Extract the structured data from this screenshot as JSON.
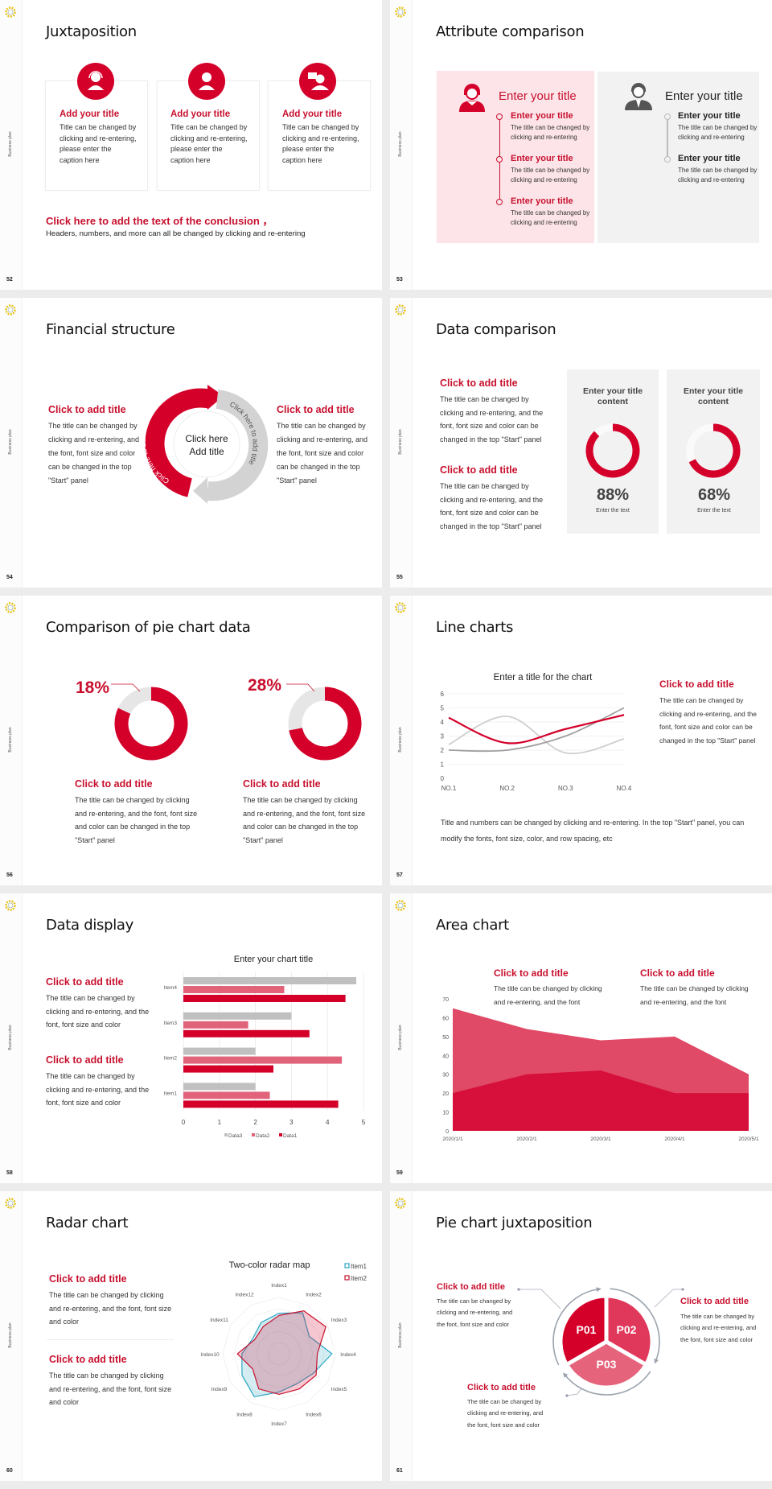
{
  "colors": {
    "accent": "#d4002a",
    "accent2": "#e0385a",
    "accent3": "#e5647c",
    "pink_panel": "#fce4e8",
    "gray_panel": "#f2f2f2",
    "gray_line": "#c8c8c8",
    "dark_gray": "#a0a0a0",
    "blue": "#2aa6c2",
    "background": "#ececec"
  },
  "sidebar": {
    "label": "Business plan",
    "logo_icon": "gear-logo-icon"
  },
  "slides": [
    {
      "number": "52",
      "title": "Juxtaposition",
      "cards": [
        {
          "icon": "headset-person-icon",
          "title": "Add your title",
          "body": "Title can be changed by clicking and re-entering, please enter the caption here"
        },
        {
          "icon": "person-icon",
          "title": "Add your title",
          "body": "Title can be changed by clicking and re-entering, please enter the caption here"
        },
        {
          "icon": "presenter-icon",
          "title": "Add your title",
          "body": "Title can be changed by clicking and re-entering, please enter the caption here"
        }
      ],
      "conclusion": "Click here to add the text of the conclusion ，",
      "subtext": "Headers, numbers, and more can all be changed by clicking and re-entering"
    },
    {
      "number": "53",
      "title": "Attribute comparison",
      "left": {
        "icon": "woman-icon",
        "heading": "Enter your title",
        "items": [
          {
            "title": "Enter your title",
            "body": "The title can be changed by clicking and re-entering"
          },
          {
            "title": "Enter your title",
            "body": "The title can be changed by clicking and re-entering"
          },
          {
            "title": "Enter your title",
            "body": "The title can be changed by clicking and re-entering"
          }
        ]
      },
      "right": {
        "icon": "businessman-icon",
        "heading": "Enter your title",
        "items": [
          {
            "title": "Enter your title",
            "body": "The title can be changed by clicking and re-entering"
          },
          {
            "title": "Enter your title",
            "body": "The title can be changed by clicking and re-entering"
          }
        ]
      }
    },
    {
      "number": "54",
      "title": "Financial structure",
      "blocks": [
        {
          "title": "Click to add title",
          "body": "The title can be changed by clicking and re-entering, and the font, font size and color can be changed in the top \"Start\" panel"
        },
        {
          "title": "Click to add title",
          "body": "The title can be changed by clicking and re-entering, and the font, font size and color can be changed in the top \"Start\" panel"
        }
      ],
      "center_line1": "Click here",
      "center_line2": "Add title",
      "arrow_red_text": "Click here to add title",
      "arrow_gray_text": "Click here to add title"
    },
    {
      "number": "55",
      "title": "Data comparison",
      "blocks": [
        {
          "title": "Click to add title",
          "body": "The title can be changed by clicking and re-entering, and the font, font size and color can be changed in the top \"Start\" panel"
        },
        {
          "title": "Click to add title",
          "body": "The title can be changed by clicking and re-entering, and the font, font size and color can be changed in the top \"Start\" panel"
        }
      ],
      "panels": [
        {
          "title": "Enter your title content",
          "percent": 88,
          "label": "88%",
          "caption": "Enter the text"
        },
        {
          "title": "Enter your title content",
          "percent": 68,
          "label": "68%",
          "caption": "Enter the text"
        }
      ]
    },
    {
      "number": "56",
      "title": "Comparison of pie chart data",
      "donuts": [
        {
          "percent": 18,
          "label": "18%",
          "title": "Click to add title",
          "body": "The title can be changed by clicking and re-entering, and the font, font size and color can be changed in the top \"Start\" panel"
        },
        {
          "percent": 28,
          "label": "28%",
          "title": "Click to add title",
          "body": "The title can be changed by clicking and re-entering, and the font, font size and color can be changed in the top \"Start\" panel"
        }
      ]
    },
    {
      "number": "57",
      "title": "Line charts",
      "block": {
        "title": "Click to add title",
        "body": "The title can be changed by clicking and re-entering, and the font, font size and color can be changed in the top \"Start\" panel"
      },
      "paragraph": "Title and numbers can be changed by clicking and re-entering. In the top \"Start\" panel, you can modify the fonts, font size, color, and row spacing, etc"
    },
    {
      "number": "58",
      "title": "Data display",
      "blocks": [
        {
          "title": "Click to add title",
          "body": "The title can be changed by clicking and re-entering, and the font, font size and color"
        },
        {
          "title": "Click to add title",
          "body": "The title can be changed by clicking and re-entering, and the font, font size and color"
        }
      ]
    },
    {
      "number": "59",
      "title": "Area chart",
      "blocks": [
        {
          "title": "Click to add title",
          "body": "The title can be changed by clicking and re-entering, and the font"
        },
        {
          "title": "Click to add title",
          "body": "The title can be changed by clicking and re-entering, and the font"
        }
      ]
    },
    {
      "number": "60",
      "title": "Radar chart",
      "blocks": [
        {
          "title": "Click to add title",
          "body": "The title can be changed by clicking and re-entering, and the font, font size and color"
        },
        {
          "title": "Click to add title",
          "body": "The title can be changed by clicking and re-entering, and the font, font size and color"
        }
      ]
    },
    {
      "number": "61",
      "title": "Pie chart juxtaposition",
      "blocks": [
        {
          "title": "Click to add title",
          "body": "The title can be changed by clicking and re-entering, and the font, font size and color"
        },
        {
          "title": "Click to add title",
          "body": "The title can be changed by clicking and re-entering, and the font, font size and color"
        },
        {
          "title": "Click to add title",
          "body": "The title can be changed by clicking and re-entering, and the font, font size and color"
        }
      ],
      "segments": [
        "P01",
        "P02",
        "P03"
      ]
    }
  ],
  "chart_data": [
    {
      "type": "line",
      "slide": "57",
      "title": "Enter a title for the chart",
      "categories": [
        "NO.1",
        "NO.2",
        "NO.3",
        "NO.4"
      ],
      "ylim": [
        0,
        6
      ],
      "yticks": [
        0,
        1,
        2,
        3,
        4,
        5,
        6
      ],
      "grid": true,
      "smooth": true,
      "series": [
        {
          "values": [
            2.4,
            4.4,
            1.8,
            2.8
          ],
          "color": "#cfcfcf"
        },
        {
          "values": [
            2,
            2,
            3,
            5
          ],
          "color": "#a0a0a0"
        },
        {
          "values": [
            4.3,
            2.5,
            3.5,
            4.5
          ],
          "color": "#d4002a"
        }
      ]
    },
    {
      "type": "bar",
      "orientation": "horizontal",
      "slide": "58",
      "title": "Enter your chart title",
      "categories": [
        "Item1",
        "Item2",
        "Item3",
        "Item4"
      ],
      "xlim": [
        0,
        5
      ],
      "xticks": [
        0,
        1,
        2,
        3,
        4,
        5
      ],
      "grid": true,
      "legend": "bottom",
      "series": [
        {
          "name": "Data3",
          "values": [
            2,
            2,
            3,
            4.8
          ],
          "color": "#c0c0c0"
        },
        {
          "name": "Data2",
          "values": [
            2.4,
            4.4,
            1.8,
            2.8
          ],
          "color": "#e0637a"
        },
        {
          "name": "Data1",
          "values": [
            4.3,
            2.5,
            3.5,
            4.5
          ],
          "color": "#d4002a"
        }
      ]
    },
    {
      "type": "area",
      "slide": "59",
      "stacked": false,
      "categories": [
        "2020/1/1",
        "2020/2/1",
        "2020/3/1",
        "2020/4/1",
        "2020/5/1"
      ],
      "ylim": [
        0,
        70
      ],
      "yticks": [
        0,
        10,
        20,
        30,
        40,
        50,
        60,
        70
      ],
      "series": [
        {
          "values": [
            65,
            54,
            48,
            50,
            30
          ],
          "color": "#e04a66"
        },
        {
          "values": [
            20,
            30,
            32,
            20,
            20
          ],
          "color": "#d6103a"
        }
      ]
    },
    {
      "type": "radar",
      "slide": "60",
      "title": "Two-color radar map",
      "legend": "top-right",
      "rmax": 5,
      "categories": [
        "Index1",
        "Index2",
        "Index3",
        "Index4",
        "Index5",
        "Index6",
        "Index7",
        "Index8",
        "Index9",
        "Index10",
        "Index11",
        "Index12"
      ],
      "series": [
        {
          "name": "Item1",
          "values": [
            3.6,
            4.2,
            3.1,
            4.7,
            3.5,
            3.1,
            3.4,
            4.4,
            3.8,
            3.3,
            2.7,
            3.2
          ],
          "color": "#2aa6c2"
        },
        {
          "name": "Item2",
          "values": [
            3.4,
            4.4,
            4.8,
            3.4,
            3.8,
            3.6,
            3.6,
            3.6,
            2.7,
            3.7,
            2.5,
            2.8
          ],
          "color": "#c8102e"
        }
      ]
    },
    {
      "type": "pie",
      "slide": "61",
      "categories": [
        "P01",
        "P02",
        "P03"
      ],
      "values": [
        33.3,
        33.3,
        33.3
      ],
      "colors": [
        "#d4002a",
        "#e0385a",
        "#e5647c"
      ]
    }
  ]
}
